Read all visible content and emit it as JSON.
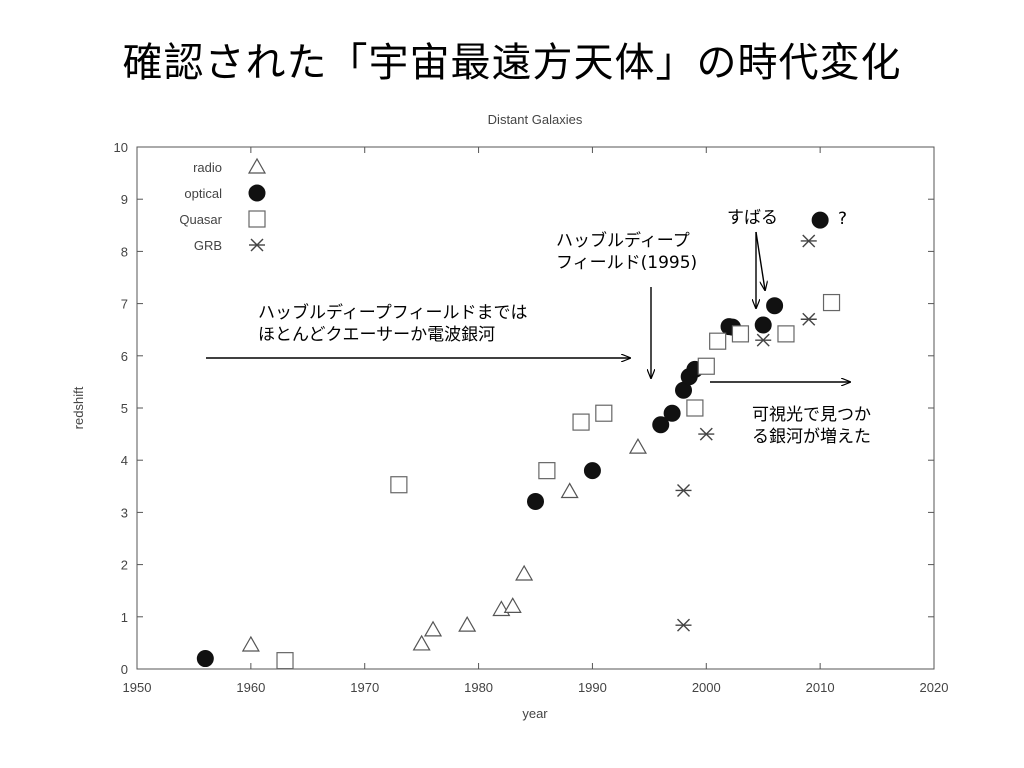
{
  "slide": {
    "title": "確認された「宇宙最遠方天体」の時代変化"
  },
  "annotations": {
    "hdf_note_line1": "ハッブルディープフィールドまでは",
    "hdf_note_line2": "ほとんどクエーサーか電波銀河",
    "hdf_label_line1": "ハッブルディープ",
    "hdf_label_line2": "フィールド(1995)",
    "subaru_label": "すばる",
    "question_mark": "?",
    "optical_note_line1": "可視光で見つか",
    "optical_note_line2": "る銀河が増えた"
  },
  "chart_data": {
    "type": "scatter",
    "title": "Distant Galaxies",
    "xlabel": "year",
    "ylabel": "redshift",
    "xlim": [
      1950,
      2020
    ],
    "ylim": [
      0,
      10
    ],
    "xticks": [
      1950,
      1960,
      1970,
      1980,
      1990,
      2000,
      2010,
      2020
    ],
    "yticks": [
      0,
      1,
      2,
      3,
      4,
      5,
      6,
      7,
      8,
      9,
      10
    ],
    "grid": false,
    "legend_position": "top-left",
    "series": [
      {
        "name": "radio",
        "marker": "triangle",
        "points": [
          [
            1960,
            0.46
          ],
          [
            1975,
            0.48
          ],
          [
            1976,
            0.75
          ],
          [
            1979,
            0.84
          ],
          [
            1982,
            1.14
          ],
          [
            1983,
            1.2
          ],
          [
            1984,
            1.82
          ],
          [
            1988,
            3.4
          ],
          [
            1994,
            4.25
          ]
        ]
      },
      {
        "name": "optical",
        "marker": "filled-circle",
        "points": [
          [
            1956,
            0.2
          ],
          [
            1985,
            3.21
          ],
          [
            1990,
            3.8
          ],
          [
            1996,
            4.68
          ],
          [
            1997,
            4.9
          ],
          [
            1998,
            5.34
          ],
          [
            1998.5,
            5.6
          ],
          [
            1999,
            5.74
          ],
          [
            2002,
            6.56
          ],
          [
            2002.3,
            6.55
          ],
          [
            2005,
            6.59
          ],
          [
            2006,
            6.96
          ],
          [
            2010,
            8.6
          ]
        ]
      },
      {
        "name": "Quasar",
        "marker": "open-square",
        "points": [
          [
            1963,
            0.16
          ],
          [
            1973,
            3.53
          ],
          [
            1986,
            3.8
          ],
          [
            1989,
            4.73
          ],
          [
            1991,
            4.9
          ],
          [
            1999,
            5.0
          ],
          [
            2000,
            5.8
          ],
          [
            2001,
            6.28
          ],
          [
            2003,
            6.42
          ],
          [
            2007,
            6.42
          ],
          [
            2011,
            7.02
          ]
        ]
      },
      {
        "name": "GRB",
        "marker": "asterisk",
        "points": [
          [
            1998,
            0.84
          ],
          [
            1998,
            3.42
          ],
          [
            2000,
            4.5
          ],
          [
            2005,
            6.3
          ],
          [
            2009,
            6.7
          ],
          [
            2009,
            8.2
          ]
        ]
      }
    ]
  }
}
